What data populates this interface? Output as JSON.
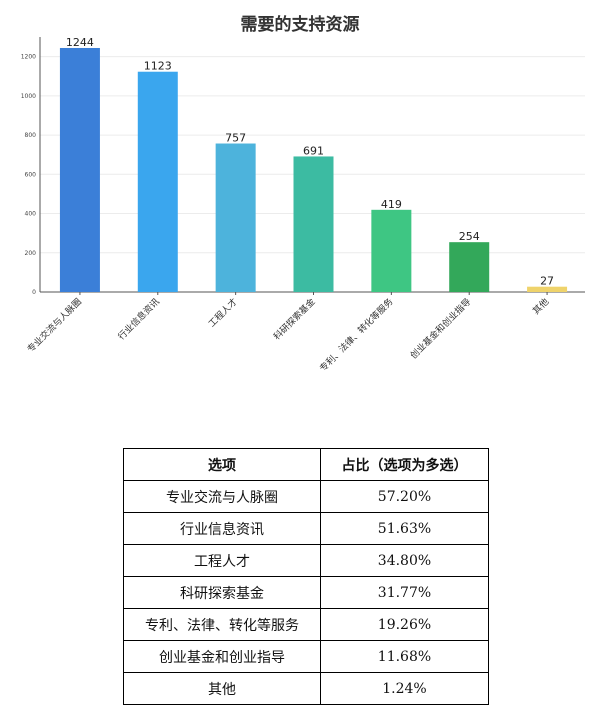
{
  "chart_data": {
    "type": "bar",
    "title": "需要的支持资源",
    "categories": [
      "专业交流与人脉圈",
      "行业信息资讯",
      "工程人才",
      "科研探索基金",
      "专利、法律、转化等服务",
      "创业基金和创业指导",
      "其他"
    ],
    "values": [
      1244,
      1123,
      757,
      691,
      419,
      254,
      27
    ],
    "colors": [
      "#3b7fd8",
      "#3aa6ee",
      "#4db3dc",
      "#3cbba2",
      "#3ec683",
      "#33a85a",
      "#efd36b"
    ],
    "ylim": [
      0,
      1300
    ],
    "yticks": [
      0,
      200,
      400,
      600,
      800,
      1000,
      1200
    ],
    "grid": true
  },
  "table": {
    "headers": [
      "选项",
      "占比（选项为多选）"
    ],
    "rows": [
      [
        "专业交流与人脉圈",
        "57.20%"
      ],
      [
        "行业信息资讯",
        "51.63%"
      ],
      [
        "工程人才",
        "34.80%"
      ],
      [
        "科研探索基金",
        "31.77%"
      ],
      [
        "专利、法律、转化等服务",
        "19.26%"
      ],
      [
        "创业基金和创业指导",
        "11.68%"
      ],
      [
        "其他",
        "1.24%"
      ]
    ]
  }
}
